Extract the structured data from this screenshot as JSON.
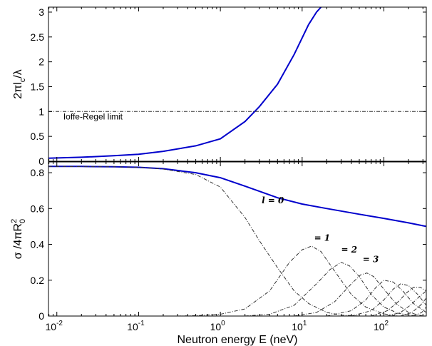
{
  "chart_data": [
    {
      "type": "line",
      "xscale": "log",
      "xlim": [
        0.0079,
        330
      ],
      "ylim": [
        0,
        3.1
      ],
      "ylabel_parts": [
        "2π",
        "l",
        "c",
        "/λ"
      ],
      "yticks": [
        0,
        0.5,
        1,
        1.5,
        2,
        2.5,
        3
      ],
      "ytick_labels": [
        "0",
        "0.5",
        "1",
        "1.5",
        "2",
        "2.5",
        "3"
      ],
      "grid": false,
      "series": [
        {
          "style": "solid",
          "color": "#0000cc",
          "x": [
            0.0079,
            0.02,
            0.05,
            0.1,
            0.2,
            0.5,
            1,
            2,
            3,
            5,
            8,
            12,
            15,
            17
          ],
          "y": [
            0.06,
            0.08,
            0.11,
            0.14,
            0.2,
            0.31,
            0.45,
            0.8,
            1.1,
            1.55,
            2.15,
            2.75,
            3.0,
            3.1
          ]
        },
        {
          "style": "dashdot",
          "color": "#333333",
          "x": [
            0.0079,
            330
          ],
          "y": [
            1,
            1
          ]
        }
      ],
      "annotations": [
        {
          "text": "Ioffe-Regel limit",
          "x": 0.012,
          "y": 0.84
        }
      ]
    },
    {
      "type": "line",
      "xscale": "log",
      "xlim": [
        0.0079,
        330
      ],
      "ylim": [
        0,
        0.86
      ],
      "xlabel": "Neutron energy E (neV)",
      "ylabel_parts": [
        "σ /4πR",
        "0",
        "2"
      ],
      "xticks": [
        0.01,
        0.1,
        1,
        10,
        100
      ],
      "xtick_labels": [
        {
          "base": "10",
          "exp": "-2"
        },
        {
          "base": "10",
          "exp": "-1"
        },
        {
          "base": "10",
          "exp": "0"
        },
        {
          "base": "10",
          "exp": "1"
        },
        {
          "base": "10",
          "exp": "2"
        }
      ],
      "yticks": [
        0,
        0.2,
        0.4,
        0.6,
        0.8
      ],
      "ytick_labels": [
        "0",
        "0.2",
        "0.4",
        "0.6",
        "0.8"
      ],
      "grid": false,
      "series": [
        {
          "style": "solid",
          "color": "#0000cc",
          "x": [
            0.0079,
            0.02,
            0.05,
            0.1,
            0.2,
            0.5,
            1,
            2,
            5,
            10,
            20,
            50,
            100,
            200,
            330
          ],
          "y": [
            0.835,
            0.835,
            0.833,
            0.83,
            0.822,
            0.8,
            0.772,
            0.725,
            0.66,
            0.625,
            0.6,
            0.568,
            0.545,
            0.52,
            0.5
          ]
        },
        {
          "style": "dashdot",
          "color": "#333333",
          "label": "l = 0",
          "x": [
            0.0079,
            0.05,
            0.1,
            0.2,
            0.5,
            1,
            2,
            3,
            5,
            8,
            12,
            20,
            30,
            50
          ],
          "y": [
            0.835,
            0.833,
            0.83,
            0.82,
            0.79,
            0.72,
            0.55,
            0.42,
            0.27,
            0.14,
            0.07,
            0.02,
            0.005,
            0
          ]
        },
        {
          "style": "dashdot",
          "color": "#333333",
          "label": "= 1",
          "x": [
            0.3,
            0.5,
            1,
            2,
            4,
            7,
            10,
            13,
            17,
            25,
            40,
            60,
            100,
            150
          ],
          "y": [
            0,
            0.002,
            0.01,
            0.04,
            0.14,
            0.3,
            0.37,
            0.39,
            0.36,
            0.25,
            0.12,
            0.05,
            0.012,
            0
          ]
        },
        {
          "style": "dashdot",
          "color": "#333333",
          "label": "= 2",
          "x": [
            2,
            4,
            8,
            15,
            22,
            30,
            38,
            50,
            70,
            100,
            150,
            250
          ],
          "y": [
            0,
            0.01,
            0.06,
            0.18,
            0.26,
            0.3,
            0.28,
            0.22,
            0.12,
            0.05,
            0.015,
            0
          ]
        },
        {
          "style": "dashdot",
          "color": "#333333",
          "label": "= 3",
          "x": [
            8,
            15,
            25,
            40,
            52,
            62,
            75,
            100,
            140,
            200,
            300
          ],
          "y": [
            0,
            0.02,
            0.08,
            0.18,
            0.23,
            0.24,
            0.22,
            0.15,
            0.07,
            0.02,
            0
          ]
        },
        {
          "style": "dashdot",
          "color": "#333333",
          "x": [
            20,
            40,
            60,
            80,
            100,
            130,
            170,
            230,
            330
          ],
          "y": [
            0,
            0.03,
            0.09,
            0.16,
            0.2,
            0.19,
            0.14,
            0.07,
            0.02
          ]
        },
        {
          "style": "dashdot",
          "color": "#333333",
          "x": [
            40,
            70,
            100,
            130,
            160,
            200,
            260,
            330
          ],
          "y": [
            0,
            0.03,
            0.09,
            0.15,
            0.18,
            0.17,
            0.12,
            0.06
          ]
        },
        {
          "style": "dashdot",
          "color": "#333333",
          "x": [
            70,
            110,
            150,
            190,
            230,
            280,
            330
          ],
          "y": [
            0,
            0.03,
            0.08,
            0.13,
            0.16,
            0.16,
            0.14
          ]
        },
        {
          "style": "dashdot",
          "color": "#333333",
          "x": [
            110,
            160,
            210,
            260,
            310,
            330
          ],
          "y": [
            0,
            0.02,
            0.06,
            0.1,
            0.13,
            0.14
          ]
        },
        {
          "style": "dashdot",
          "color": "#333333",
          "x": [
            160,
            220,
            280,
            330
          ],
          "y": [
            0,
            0.02,
            0.06,
            0.1
          ]
        },
        {
          "style": "dashdot",
          "color": "#333333",
          "x": [
            230,
            290,
            330
          ],
          "y": [
            0,
            0.02,
            0.05
          ]
        }
      ],
      "curve_labels": [
        {
          "text": "l = 0",
          "x": 3.2,
          "y": 0.63
        },
        {
          "text": "= 1",
          "x": 14,
          "y": 0.42
        },
        {
          "text": "= 2",
          "x": 30,
          "y": 0.355
        },
        {
          "text": "= 3",
          "x": 55,
          "y": 0.3
        }
      ]
    }
  ]
}
